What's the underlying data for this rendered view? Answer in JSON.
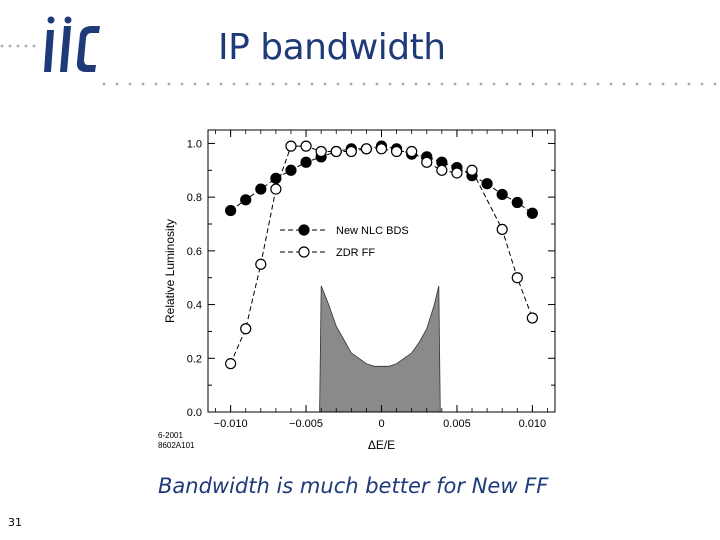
{
  "slide": {
    "title": "IP bandwidth",
    "caption": "Bandwidth is much better for New FF",
    "page_number": "31",
    "logo_text": "ilc",
    "accent_color": "#1e3a78",
    "dot_color": "#a8a9b8"
  },
  "chart_data": {
    "type": "scatter",
    "title": "",
    "xlabel": "ΔE/E",
    "ylabel": "Relative Luminosity",
    "xlim": [
      -0.0115,
      0.0115
    ],
    "ylim": [
      0.0,
      1.05
    ],
    "x_ticks": [
      -0.01,
      -0.005,
      0,
      0.005,
      0.01
    ],
    "x_tick_labels": [
      "−0.010",
      "−0.005",
      "0",
      "0.005",
      "0.010"
    ],
    "y_ticks": [
      0.0,
      0.2,
      0.4,
      0.6,
      0.8,
      1.0
    ],
    "y_tick_labels": [
      "0.0",
      "0.2",
      "0.4",
      "0.6",
      "0.8",
      "1.0"
    ],
    "figure_notes": [
      "6-2001",
      "8602A101"
    ],
    "legend_position": "center-right",
    "series": [
      {
        "name": "New NLC BDS",
        "marker": "filled-circle",
        "x": [
          -0.01,
          -0.009,
          -0.008,
          -0.007,
          -0.006,
          -0.005,
          -0.004,
          -0.003,
          -0.002,
          -0.001,
          0,
          0.001,
          0.002,
          0.003,
          0.004,
          0.005,
          0.006,
          0.007,
          0.008,
          0.009,
          0.01
        ],
        "y": [
          0.75,
          0.79,
          0.83,
          0.87,
          0.9,
          0.93,
          0.95,
          0.97,
          0.98,
          0.98,
          0.99,
          0.98,
          0.96,
          0.95,
          0.93,
          0.91,
          0.88,
          0.85,
          0.81,
          0.78,
          0.74
        ]
      },
      {
        "name": "ZDR FF",
        "marker": "open-circle",
        "x": [
          -0.01,
          -0.009,
          -0.008,
          -0.007,
          -0.006,
          -0.005,
          -0.004,
          -0.003,
          -0.002,
          -0.001,
          0,
          0.001,
          0.002,
          0.003,
          0.004,
          0.005,
          0.006,
          0.008,
          0.009,
          0.01
        ],
        "y": [
          0.18,
          0.31,
          0.55,
          0.83,
          0.99,
          0.99,
          0.97,
          0.97,
          0.97,
          0.98,
          0.98,
          0.97,
          0.97,
          0.93,
          0.9,
          0.89,
          0.9,
          0.68,
          0.5,
          0.35
        ]
      }
    ],
    "energy_spread": {
      "fill_color": "#8a8a8a",
      "x": [
        -0.0041,
        -0.004,
        -0.0035,
        -0.003,
        -0.0025,
        -0.002,
        -0.0015,
        -0.001,
        -0.0005,
        0,
        0.0005,
        0.001,
        0.0015,
        0.002,
        0.0025,
        0.003,
        0.0035,
        0.0038,
        0.0039
      ],
      "y": [
        0.0,
        0.47,
        0.4,
        0.32,
        0.27,
        0.22,
        0.2,
        0.18,
        0.17,
        0.17,
        0.17,
        0.18,
        0.2,
        0.22,
        0.26,
        0.31,
        0.4,
        0.47,
        0.0
      ]
    }
  }
}
